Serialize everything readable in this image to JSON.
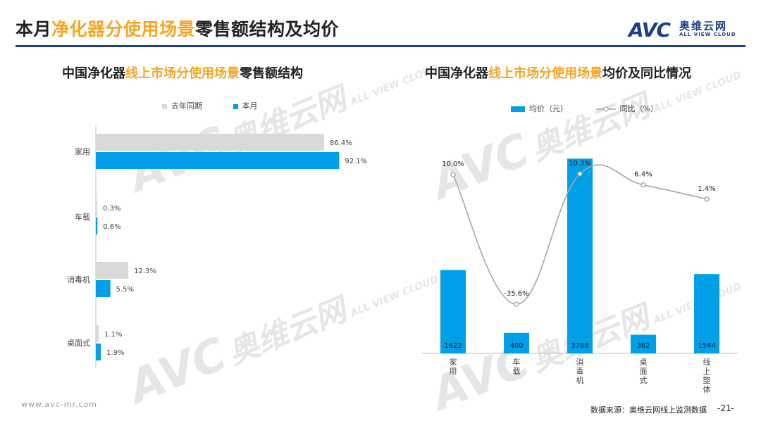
{
  "header": {
    "title_pre": "本月",
    "title_hl": "净化器分使用场景",
    "title_post": "零售额结构及均价",
    "logo_brand": "AVC",
    "logo_cn": "奥维云网",
    "logo_en": "ALL VIEW CLOUD"
  },
  "watermark": {
    "brand": "AVC",
    "cn": "奥维云网",
    "en": "ALL VIEW CLOUD"
  },
  "colors": {
    "accent": "#f5a623",
    "blue": "#00a0e9",
    "gray": "#d9d9d9",
    "rule": "#1a3e8c"
  },
  "left_chart": {
    "title_pre": "中国净化器",
    "title_hl": "线上市场分使用场景",
    "title_post": "零售额结构"
  },
  "right_chart": {
    "title_pre": "中国净化器",
    "title_hl": "线上市场分使用场景",
    "title_post": "均价及同比情况"
  },
  "chart_data": [
    {
      "type": "bar",
      "orientation": "horizontal",
      "categories": [
        "家用",
        "车载",
        "消毒机",
        "桌面式"
      ],
      "series": [
        {
          "name": "去年同期",
          "values": [
            86.4,
            0.3,
            12.3,
            1.1
          ],
          "labels": [
            "86.4%",
            "0.3%",
            "12.3%",
            "1.1%"
          ],
          "color": "#d9d9d9"
        },
        {
          "name": "本月",
          "values": [
            92.1,
            0.6,
            5.5,
            1.9
          ],
          "labels": [
            "92.1%",
            "0.6%",
            "5.5%",
            "1.9%"
          ],
          "color": "#00a0e9"
        }
      ],
      "xlim": [
        0,
        100
      ],
      "legend": "top",
      "grid": false
    },
    {
      "type": "bar",
      "categories": [
        "家用",
        "车载",
        "消毒机",
        "桌面式",
        "线上整体"
      ],
      "series": [
        {
          "name": "均价（元）",
          "values": [
            1622,
            400,
            3788,
            362,
            1544
          ],
          "labels": [
            "1622",
            "400",
            "3788",
            "362",
            "1544"
          ],
          "color": "#00a0e9"
        },
        {
          "name": "同比（%）",
          "type": "line",
          "values": [
            10.0,
            -35.6,
            10.3,
            6.4,
            1.4
          ],
          "labels": [
            "10.0%",
            "-35.6%",
            "10.3%",
            "6.4%",
            "1.4%"
          ],
          "color": "#a6a6a6"
        }
      ],
      "ylim": [
        0,
        4300
      ],
      "y2lim": [
        -45,
        15
      ],
      "legend": "top",
      "grid": false
    }
  ],
  "footer": {
    "website": "www.avc-mr.com",
    "source": "数据来源：奥维云网线上监测数据",
    "page": "-21-"
  }
}
